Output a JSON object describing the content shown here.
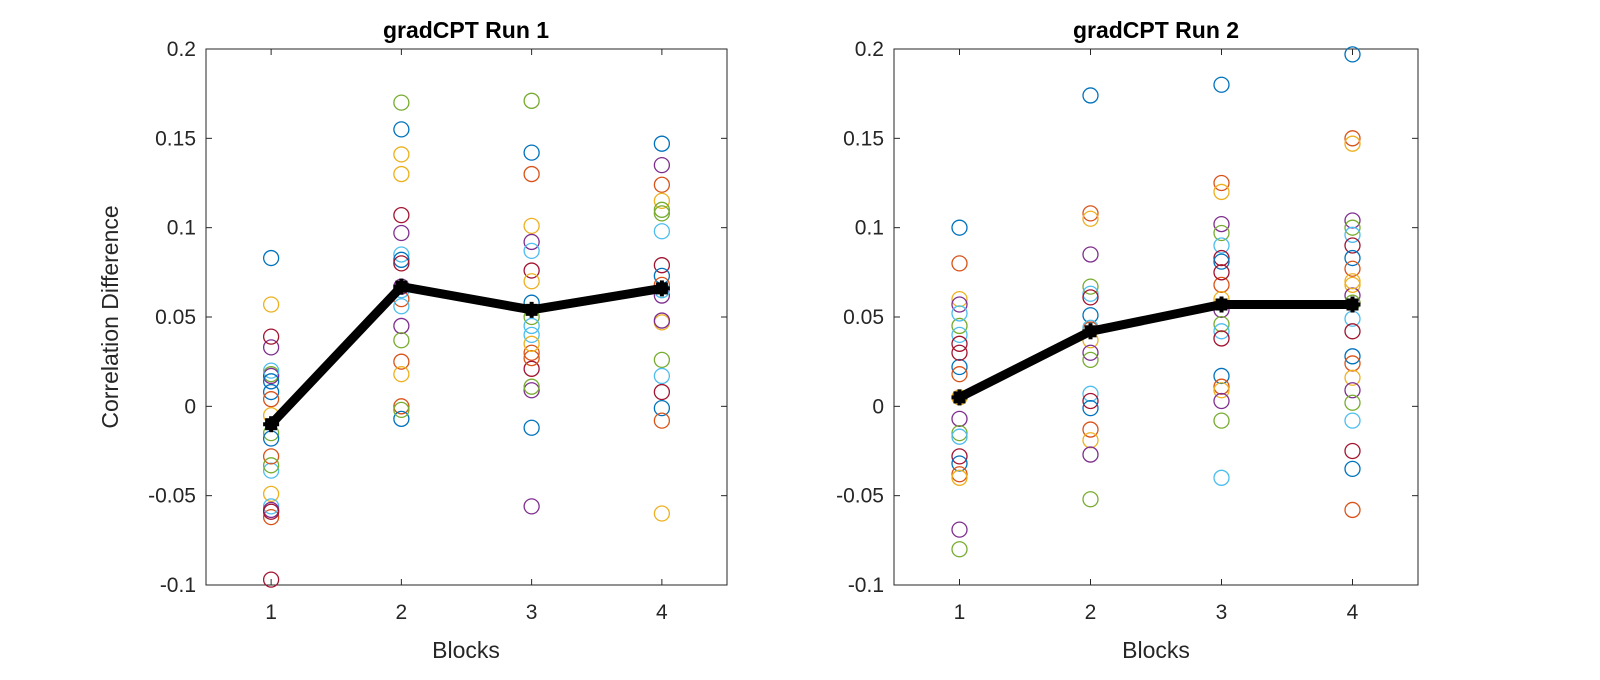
{
  "palette": [
    "#0072BD",
    "#D95319",
    "#EDB120",
    "#7E2F8E",
    "#77AC30",
    "#4DBEEE",
    "#A2142F"
  ],
  "mean_color": "#000000",
  "chart_data": [
    {
      "type": "scatter",
      "title": "gradCPT Run 1",
      "xlabel": "Blocks",
      "ylabel": "Correlation Difference",
      "xlim": [
        0.5,
        4.5
      ],
      "ylim": [
        -0.1,
        0.2
      ],
      "xticks": [
        1,
        2,
        3,
        4
      ],
      "yticks": [
        -0.1,
        -0.05,
        0,
        0.05,
        0.1,
        0.15,
        0.2
      ],
      "ytick_labels": [
        "-0.1",
        "-0.05",
        "0",
        "0.05",
        "0.1",
        "0.15",
        "0.2"
      ],
      "grid": false,
      "points": [
        [
          0.083,
          -0.062,
          0.057,
          0.033,
          0.018,
          -0.036,
          0.039,
          0.008,
          -0.028,
          -0.049,
          0.017,
          -0.015,
          -0.056,
          -0.097,
          -0.018,
          0.004,
          -0.005,
          -0.058,
          -0.033,
          0.02,
          -0.059,
          0.014
        ],
        [
          0.155,
          0.0,
          0.13,
          0.097,
          0.17,
          0.085,
          0.107,
          0.082,
          0.025,
          0.141,
          0.045,
          0.037,
          0.065,
          0.08,
          -0.007,
          0.06,
          0.018,
          0.067,
          -0.002,
          0.056
        ],
        [
          0.142,
          0.13,
          0.101,
          0.092,
          0.171,
          0.087,
          0.076,
          0.058,
          0.03,
          0.07,
          -0.056,
          0.05,
          0.04,
          0.021,
          -0.012,
          0.027,
          0.035,
          0.009,
          0.011,
          0.045
        ],
        [
          0.147,
          0.124,
          0.115,
          0.135,
          0.11,
          0.098,
          0.079,
          0.073,
          0.068,
          0.047,
          0.062,
          0.026,
          0.017,
          0.008,
          -0.001,
          -0.008,
          -0.06,
          0.048,
          0.108,
          0.065
        ]
      ],
      "mean": [
        -0.01,
        0.067,
        0.054,
        0.066
      ]
    },
    {
      "type": "scatter",
      "title": "gradCPT Run 2",
      "xlabel": "Blocks",
      "ylabel": "",
      "xlim": [
        0.5,
        4.5
      ],
      "ylim": [
        -0.1,
        0.2
      ],
      "xticks": [
        1,
        2,
        3,
        4
      ],
      "yticks": [
        -0.1,
        -0.05,
        0,
        0.05,
        0.1,
        0.15,
        0.2
      ],
      "ytick_labels": [
        "-0.1",
        "-0.05",
        "0",
        "0.05",
        "0.1",
        "0.15",
        "0.2"
      ],
      "grid": false,
      "points": [
        [
          0.1,
          0.08,
          0.06,
          0.057,
          0.045,
          0.04,
          0.035,
          0.022,
          0.018,
          0.005,
          -0.007,
          -0.015,
          -0.017,
          -0.028,
          -0.032,
          -0.038,
          -0.04,
          -0.069,
          -0.08,
          0.052,
          0.03
        ],
        [
          0.174,
          0.108,
          0.105,
          0.085,
          0.067,
          0.063,
          0.061,
          0.051,
          0.043,
          0.037,
          0.03,
          0.026,
          0.007,
          0.003,
          -0.001,
          -0.013,
          -0.019,
          -0.027,
          -0.052,
          0.044
        ],
        [
          0.18,
          0.125,
          0.12,
          0.102,
          0.097,
          0.09,
          0.083,
          0.081,
          0.068,
          0.06,
          0.054,
          0.046,
          0.042,
          0.038,
          0.017,
          0.011,
          0.009,
          0.003,
          -0.008,
          -0.04,
          0.075
        ],
        [
          0.197,
          0.15,
          0.147,
          0.104,
          0.1,
          0.096,
          0.09,
          0.083,
          0.077,
          0.068,
          0.062,
          0.058,
          0.049,
          0.042,
          0.028,
          0.024,
          0.016,
          0.009,
          0.002,
          -0.008,
          -0.025,
          -0.035,
          -0.058,
          0.07
        ]
      ],
      "mean": [
        0.005,
        0.042,
        0.057,
        0.057
      ]
    }
  ]
}
